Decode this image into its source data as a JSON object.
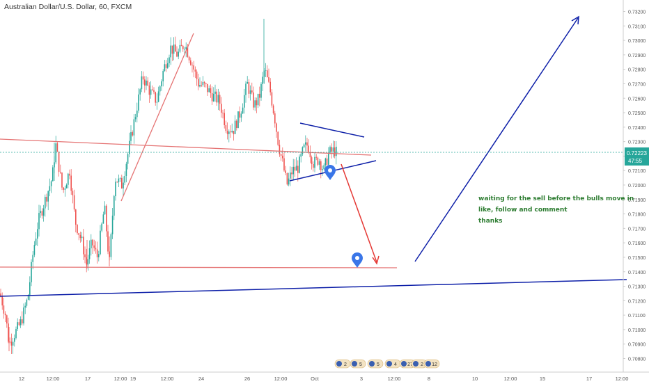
{
  "chart_data": {
    "type": "candlestick",
    "title": "Australian Dollar/U.S. Dollar, 60, FXCM",
    "instrument": "Australian Dollar/U.S. Dollar",
    "interval": "60",
    "source": "FXCM",
    "y_axis": {
      "position": "right",
      "ylim": [
        0.7075,
        0.7325
      ],
      "ticks": [
        "0.70800",
        "0.70900",
        "0.71000",
        "0.71100",
        "0.71200",
        "0.71300",
        "0.71400",
        "0.71500",
        "0.71600",
        "0.71700",
        "0.71800",
        "0.71900",
        "0.72000",
        "0.72100",
        "0.72200",
        "0.72300",
        "0.72400",
        "0.72500",
        "0.72600",
        "0.72700",
        "0.72800",
        "0.72900",
        "0.73000",
        "0.73100",
        "0.73200"
      ]
    },
    "x_axis": {
      "ticks": [
        "12",
        "12:00",
        "17",
        "12:00",
        "19",
        "12:00",
        "24",
        "26",
        "12:00",
        "Oct",
        "3",
        "12:00",
        "8",
        "10",
        "12:00",
        "15",
        "17",
        "12:00"
      ]
    },
    "last_price": {
      "value": "0.72223",
      "countdown": "47:55",
      "color": "#26a69a"
    },
    "colors": {
      "up": "#26a69a",
      "down": "#ef5350",
      "trend_red": "#e57373",
      "trend_blue": "#0d1fa8",
      "target_arrow": "#e53935",
      "pin": "#3a76e8"
    },
    "annotations": [
      "waiting for the sell before the bulls move in",
      "like, follow and comment",
      "thanks"
    ],
    "event_badges": [
      "2",
      "5",
      "5",
      "4",
      "27",
      "2",
      "12"
    ]
  }
}
